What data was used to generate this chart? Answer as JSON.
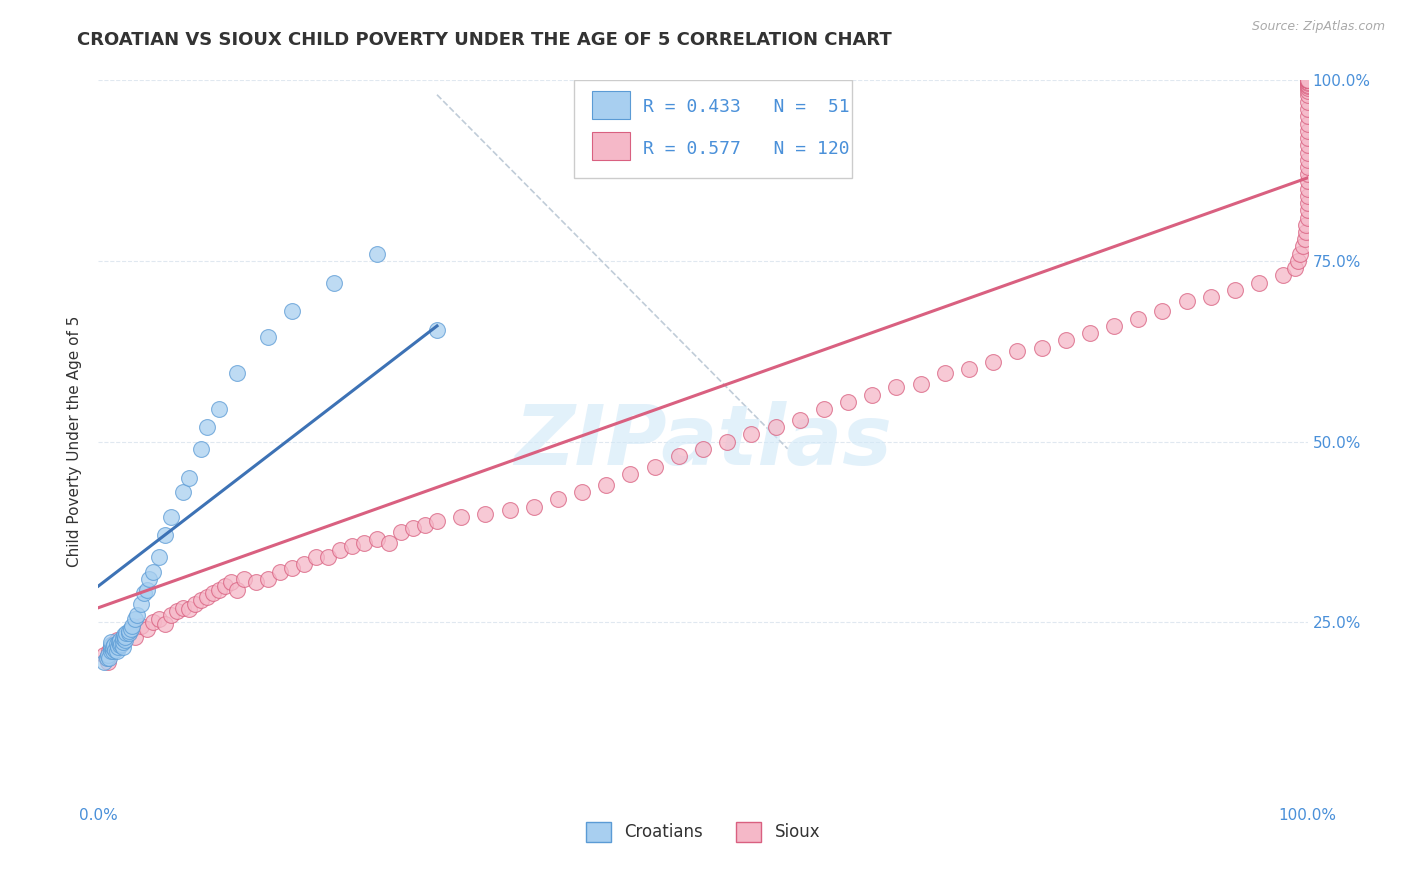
{
  "title": "CROATIAN VS SIOUX CHILD POVERTY UNDER THE AGE OF 5 CORRELATION CHART",
  "source": "Source: ZipAtlas.com",
  "ylabel": "Child Poverty Under the Age of 5",
  "xlim": [
    0.0,
    1.0
  ],
  "ylim": [
    0.0,
    1.0
  ],
  "x_ticks": [
    0.0,
    0.1,
    0.2,
    0.3,
    0.4,
    0.5,
    0.6,
    0.7,
    0.8,
    0.9,
    1.0
  ],
  "x_tick_labels": [
    "0.0%",
    "",
    "",
    "",
    "",
    "",
    "",
    "",
    "",
    "",
    "100.0%"
  ],
  "y_tick_labels": [
    "25.0%",
    "50.0%",
    "75.0%",
    "100.0%"
  ],
  "y_ticks": [
    0.25,
    0.5,
    0.75,
    1.0
  ],
  "watermark": "ZIPatlas",
  "croatians": {
    "color": "#a8cff0",
    "edge_color": "#5b9bd5",
    "line_color": "#3d72b5",
    "scatter_x": [
      0.005,
      0.007,
      0.008,
      0.009,
      0.01,
      0.01,
      0.01,
      0.01,
      0.012,
      0.012,
      0.013,
      0.014,
      0.015,
      0.015,
      0.016,
      0.017,
      0.018,
      0.018,
      0.019,
      0.02,
      0.02,
      0.02,
      0.021,
      0.022,
      0.022,
      0.023,
      0.025,
      0.025,
      0.027,
      0.028,
      0.03,
      0.032,
      0.035,
      0.038,
      0.04,
      0.042,
      0.045,
      0.05,
      0.055,
      0.06,
      0.07,
      0.075,
      0.085,
      0.09,
      0.1,
      0.115,
      0.14,
      0.16,
      0.195,
      0.23,
      0.28
    ],
    "scatter_y": [
      0.195,
      0.2,
      0.205,
      0.2,
      0.21,
      0.215,
      0.218,
      0.222,
      0.21,
      0.215,
      0.218,
      0.212,
      0.21,
      0.22,
      0.215,
      0.222,
      0.218,
      0.225,
      0.22,
      0.215,
      0.222,
      0.228,
      0.232,
      0.225,
      0.23,
      0.235,
      0.235,
      0.238,
      0.24,
      0.245,
      0.255,
      0.26,
      0.275,
      0.29,
      0.295,
      0.31,
      0.32,
      0.34,
      0.37,
      0.395,
      0.43,
      0.45,
      0.49,
      0.52,
      0.545,
      0.595,
      0.645,
      0.68,
      0.72,
      0.76,
      0.655
    ],
    "trend_x": [
      0.0,
      0.28
    ],
    "trend_y": [
      0.3,
      0.66
    ]
  },
  "sioux": {
    "color": "#f5b8c8",
    "edge_color": "#d96080",
    "line_color": "#d96080",
    "scatter_x": [
      0.005,
      0.007,
      0.008,
      0.009,
      0.01,
      0.012,
      0.015,
      0.018,
      0.02,
      0.022,
      0.025,
      0.028,
      0.03,
      0.035,
      0.04,
      0.045,
      0.05,
      0.055,
      0.06,
      0.065,
      0.07,
      0.075,
      0.08,
      0.085,
      0.09,
      0.095,
      0.1,
      0.105,
      0.11,
      0.115,
      0.12,
      0.13,
      0.14,
      0.15,
      0.16,
      0.17,
      0.18,
      0.19,
      0.2,
      0.21,
      0.22,
      0.23,
      0.24,
      0.25,
      0.26,
      0.27,
      0.28,
      0.3,
      0.32,
      0.34,
      0.36,
      0.38,
      0.4,
      0.42,
      0.44,
      0.46,
      0.48,
      0.5,
      0.52,
      0.54,
      0.56,
      0.58,
      0.6,
      0.62,
      0.64,
      0.66,
      0.68,
      0.7,
      0.72,
      0.74,
      0.76,
      0.78,
      0.8,
      0.82,
      0.84,
      0.86,
      0.88,
      0.9,
      0.92,
      0.94,
      0.96,
      0.98,
      0.99,
      0.992,
      0.994,
      0.996,
      0.998,
      0.999,
      0.999,
      1.0,
      1.0,
      1.0,
      1.0,
      1.0,
      1.0,
      1.0,
      1.0,
      1.0,
      1.0,
      1.0,
      1.0,
      1.0,
      1.0,
      1.0,
      1.0,
      1.0,
      1.0,
      1.0,
      1.0,
      1.0,
      1.0,
      1.0,
      1.0,
      1.0,
      1.0,
      1.0,
      1.0,
      1.0,
      1.0,
      1.0,
      1.0
    ],
    "scatter_y": [
      0.205,
      0.2,
      0.195,
      0.21,
      0.215,
      0.22,
      0.225,
      0.218,
      0.225,
      0.23,
      0.235,
      0.24,
      0.23,
      0.245,
      0.24,
      0.25,
      0.255,
      0.248,
      0.26,
      0.265,
      0.27,
      0.268,
      0.275,
      0.28,
      0.285,
      0.29,
      0.295,
      0.3,
      0.305,
      0.295,
      0.31,
      0.305,
      0.31,
      0.32,
      0.325,
      0.33,
      0.34,
      0.34,
      0.35,
      0.355,
      0.36,
      0.365,
      0.36,
      0.375,
      0.38,
      0.385,
      0.39,
      0.395,
      0.4,
      0.405,
      0.41,
      0.42,
      0.43,
      0.44,
      0.455,
      0.465,
      0.48,
      0.49,
      0.5,
      0.51,
      0.52,
      0.53,
      0.545,
      0.555,
      0.565,
      0.575,
      0.58,
      0.595,
      0.6,
      0.61,
      0.625,
      0.63,
      0.64,
      0.65,
      0.66,
      0.67,
      0.68,
      0.695,
      0.7,
      0.71,
      0.72,
      0.73,
      0.74,
      0.75,
      0.76,
      0.77,
      0.78,
      0.79,
      0.8,
      0.81,
      0.82,
      0.83,
      0.84,
      0.85,
      0.86,
      0.87,
      0.88,
      0.89,
      0.9,
      0.91,
      0.92,
      0.93,
      0.94,
      0.95,
      0.96,
      0.97,
      0.98,
      0.985,
      0.99,
      0.992,
      0.994,
      0.996,
      0.998,
      1.0,
      1.0,
      1.0,
      1.0,
      1.0,
      1.0,
      1.0,
      1.0
    ],
    "trend_x": [
      0.0,
      1.0
    ],
    "trend_y": [
      0.27,
      0.865
    ]
  },
  "diagonal": {
    "x": [
      0.28,
      0.57
    ],
    "y": [
      0.98,
      0.49
    ]
  },
  "background_color": "#ffffff",
  "grid_color": "#e0e8f0",
  "title_color": "#333333",
  "tick_label_color": "#4a90d9",
  "title_fontsize": 13,
  "axis_label_fontsize": 11,
  "tick_fontsize": 11
}
